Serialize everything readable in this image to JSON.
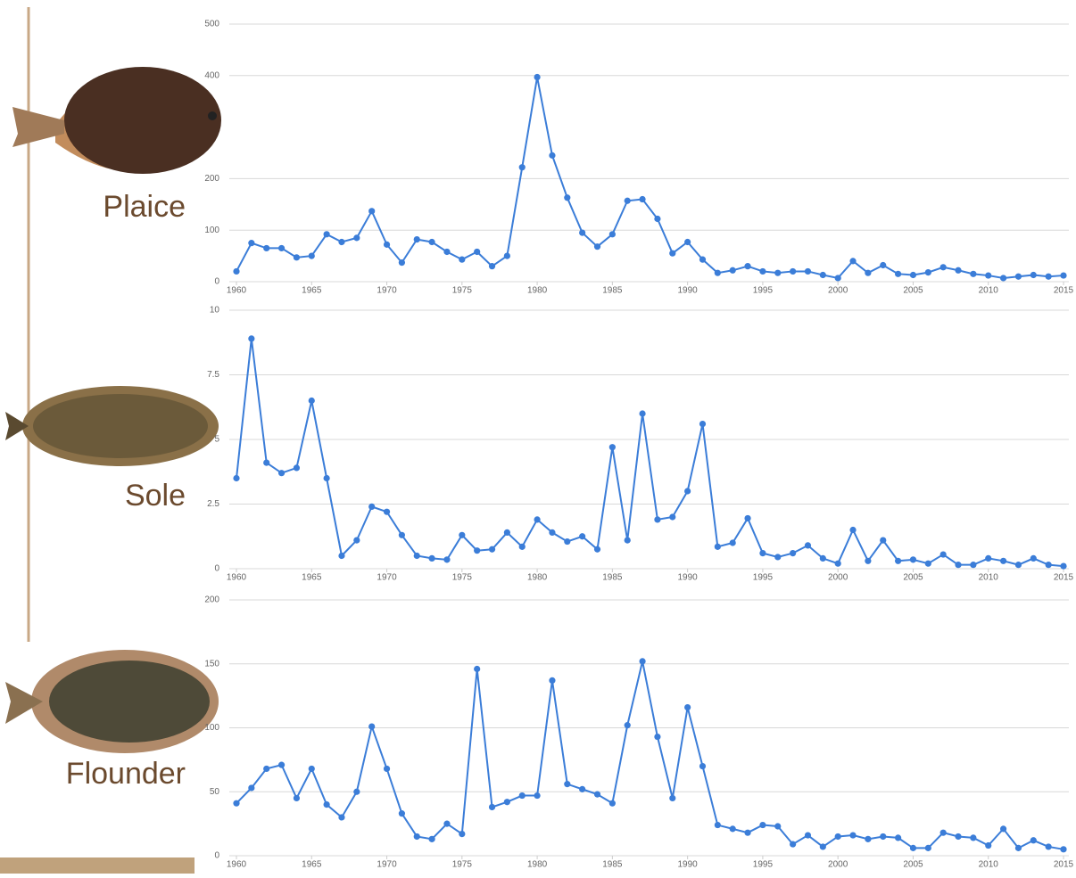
{
  "chart_data": [
    {
      "type": "line",
      "title": "Plaice",
      "x": [
        1960,
        1961,
        1962,
        1963,
        1964,
        1965,
        1966,
        1967,
        1968,
        1969,
        1970,
        1971,
        1972,
        1973,
        1974,
        1975,
        1976,
        1977,
        1978,
        1979,
        1980,
        1981,
        1982,
        1983,
        1984,
        1985,
        1986,
        1987,
        1988,
        1989,
        1990,
        1991,
        1992,
        1993,
        1994,
        1995,
        1996,
        1997,
        1998,
        1999,
        2000,
        2001,
        2002,
        2003,
        2004,
        2005,
        2006,
        2007,
        2008,
        2009,
        2010,
        2011,
        2012,
        2013,
        2014,
        2015
      ],
      "series": [
        {
          "color": "#3b7dd8",
          "values": [
            20,
            75,
            65,
            65,
            47,
            50,
            92,
            77,
            85,
            137,
            72,
            37,
            82,
            77,
            58,
            43,
            58,
            30,
            50,
            222,
            397,
            245,
            163,
            95,
            68,
            92,
            157,
            160,
            122,
            55,
            77,
            43,
            17,
            22,
            30,
            20,
            17,
            20,
            20,
            13,
            7,
            40,
            17,
            32,
            15,
            13,
            18,
            28,
            22,
            15,
            12,
            7,
            10,
            13,
            10,
            12
          ]
        }
      ],
      "xlim": [
        1960,
        2015
      ],
      "xticks": [
        1960,
        1965,
        1970,
        1975,
        1980,
        1985,
        1990,
        1995,
        2000,
        2005,
        2010,
        2015
      ],
      "ylim": [
        0,
        500
      ],
      "yticks": [
        0,
        100,
        200,
        400,
        500
      ],
      "grid": true
    },
    {
      "type": "line",
      "title": "Sole",
      "x": [
        1960,
        1961,
        1962,
        1963,
        1964,
        1965,
        1966,
        1967,
        1968,
        1969,
        1970,
        1971,
        1972,
        1973,
        1974,
        1975,
        1976,
        1977,
        1978,
        1979,
        1980,
        1981,
        1982,
        1983,
        1984,
        1985,
        1986,
        1987,
        1988,
        1989,
        1990,
        1991,
        1992,
        1993,
        1994,
        1995,
        1996,
        1997,
        1998,
        1999,
        2000,
        2001,
        2002,
        2003,
        2004,
        2005,
        2006,
        2007,
        2008,
        2009,
        2010,
        2011,
        2012,
        2013,
        2014,
        2015
      ],
      "series": [
        {
          "color": "#3b7dd8",
          "values": [
            3.5,
            8.9,
            4.1,
            3.7,
            3.9,
            6.5,
            3.5,
            0.5,
            1.1,
            2.4,
            2.2,
            1.3,
            0.5,
            0.4,
            0.35,
            1.3,
            0.7,
            0.75,
            1.4,
            0.85,
            1.9,
            1.4,
            1.05,
            1.25,
            0.75,
            4.7,
            1.1,
            6.0,
            1.9,
            2.0,
            3.0,
            5.6,
            0.85,
            1.0,
            1.95,
            0.6,
            0.45,
            0.6,
            0.9,
            0.4,
            0.2,
            1.5,
            0.3,
            1.1,
            0.3,
            0.35,
            0.2,
            0.55,
            0.15,
            0.15,
            0.4,
            0.3,
            0.15,
            0.4,
            0.15,
            0.1
          ]
        }
      ],
      "xlim": [
        1960,
        2015
      ],
      "xticks": [
        1960,
        1965,
        1970,
        1975,
        1980,
        1985,
        1990,
        1995,
        2000,
        2005,
        2010,
        2015
      ],
      "ylim": [
        0,
        10
      ],
      "yticks": [
        0,
        2.5,
        5,
        7.5,
        10
      ],
      "grid": true
    },
    {
      "type": "line",
      "title": "Flounder",
      "x": [
        1960,
        1961,
        1962,
        1963,
        1964,
        1965,
        1966,
        1967,
        1968,
        1969,
        1970,
        1971,
        1972,
        1973,
        1974,
        1975,
        1976,
        1977,
        1978,
        1979,
        1980,
        1981,
        1982,
        1983,
        1984,
        1985,
        1986,
        1987,
        1988,
        1989,
        1990,
        1991,
        1992,
        1993,
        1994,
        1995,
        1996,
        1997,
        1998,
        1999,
        2000,
        2001,
        2002,
        2003,
        2004,
        2005,
        2006,
        2007,
        2008,
        2009,
        2010,
        2011,
        2012,
        2013,
        2014,
        2015
      ],
      "series": [
        {
          "color": "#3b7dd8",
          "values": [
            41,
            53,
            68,
            71,
            45,
            68,
            40,
            30,
            50,
            101,
            68,
            33,
            15,
            13,
            25,
            17,
            146,
            38,
            42,
            47,
            47,
            137,
            56,
            52,
            48,
            41,
            102,
            152,
            93,
            45,
            116,
            70,
            24,
            21,
            18,
            24,
            23,
            9,
            16,
            7,
            15,
            16,
            13,
            15,
            14,
            6,
            6,
            18,
            15,
            14,
            8,
            21,
            6,
            12,
            7,
            5
          ]
        }
      ],
      "xlim": [
        1960,
        2015
      ],
      "xticks": [
        1960,
        1965,
        1970,
        1975,
        1980,
        1985,
        1990,
        1995,
        2000,
        2005,
        2010,
        2015
      ],
      "ylim": [
        0,
        200
      ],
      "yticks": [
        0,
        50,
        100,
        150,
        200
      ],
      "grid": true
    }
  ]
}
